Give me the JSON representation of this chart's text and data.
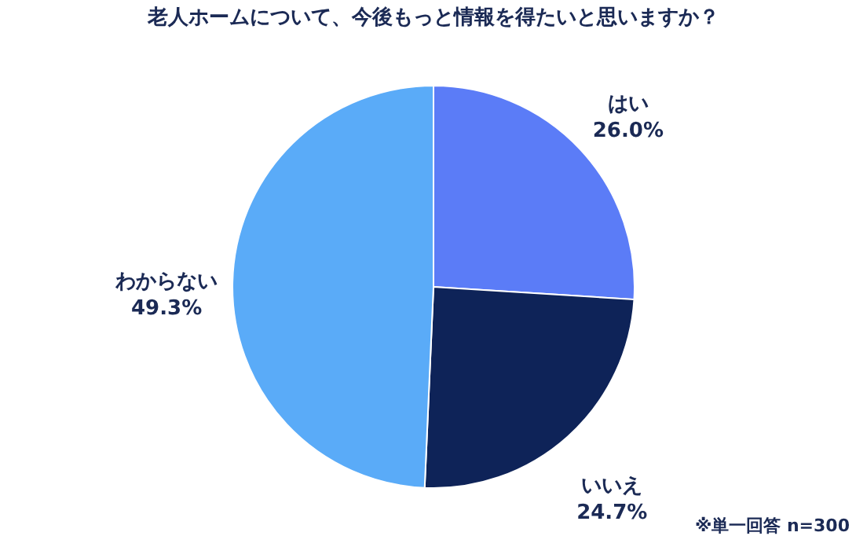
{
  "chart_data": {
    "type": "pie",
    "title": "老人ホームについて、今後もっと情報を得たいと思いますか？",
    "categories": [
      "はい",
      "いいえ",
      "わからない"
    ],
    "values": [
      26.0,
      24.7,
      49.3
    ],
    "value_labels": [
      "26.0%",
      "24.7%",
      "49.3%"
    ],
    "colors": [
      "#5b7cf7",
      "#0e2358",
      "#5aabf8"
    ],
    "annotations": [
      "※単一回答 n=300"
    ],
    "legend": false
  }
}
